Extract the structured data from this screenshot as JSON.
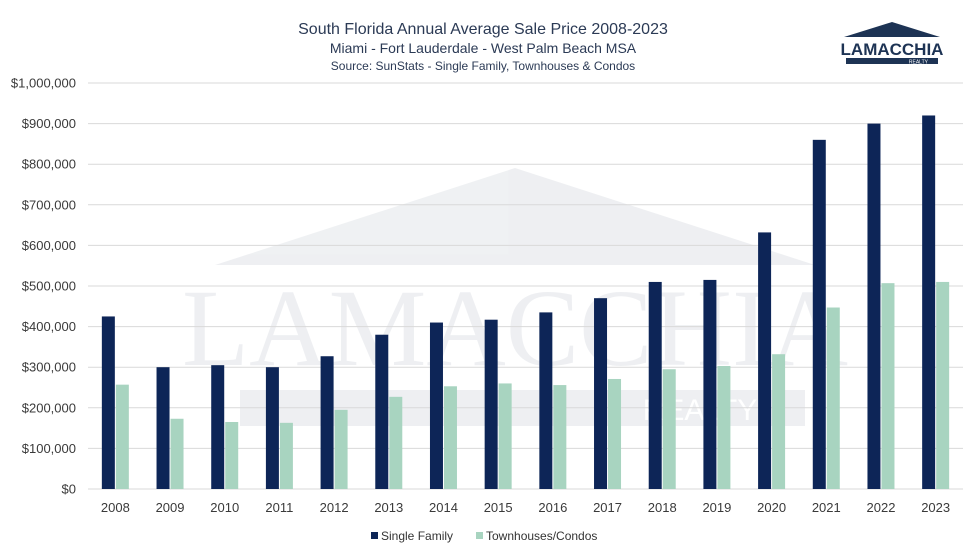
{
  "chart_data": {
    "type": "bar",
    "title": "South Florida Annual Average Sale Price 2008-2023",
    "subtitle": "Miami - Fort Lauderdale - West Palm Beach MSA",
    "source": "Source: SunStats - Single Family, Townhouses & Condos",
    "xlabel": "",
    "ylabel": "",
    "ylim": [
      0,
      1000000
    ],
    "grid": true,
    "legend_position": "bottom",
    "y_ticks": [
      {
        "value": 0,
        "label": "$0"
      },
      {
        "value": 100000,
        "label": "$100,000"
      },
      {
        "value": 200000,
        "label": "$200,000"
      },
      {
        "value": 300000,
        "label": "$300,000"
      },
      {
        "value": 400000,
        "label": "$400,000"
      },
      {
        "value": 500000,
        "label": "$500,000"
      },
      {
        "value": 600000,
        "label": "$600,000"
      },
      {
        "value": 700000,
        "label": "$700,000"
      },
      {
        "value": 800000,
        "label": "$800,000"
      },
      {
        "value": 900000,
        "label": "$900,000"
      },
      {
        "value": 1000000,
        "label": "$1,000,000"
      }
    ],
    "categories": [
      "2008",
      "2009",
      "2010",
      "2011",
      "2012",
      "2013",
      "2014",
      "2015",
      "2016",
      "2017",
      "2018",
      "2019",
      "2020",
      "2021",
      "2022",
      "2023"
    ],
    "series": [
      {
        "name": "Single Family",
        "color": "#0d2557",
        "values": [
          425000,
          300000,
          305000,
          300000,
          327000,
          380000,
          410000,
          417000,
          435000,
          470000,
          510000,
          515000,
          632000,
          860000,
          900000,
          920000
        ]
      },
      {
        "name": "Townhouses/Condos",
        "color": "#a8d4c0",
        "values": [
          257000,
          173000,
          165000,
          163000,
          195000,
          227000,
          253000,
          260000,
          256000,
          271000,
          295000,
          303000,
          332000,
          447000,
          507000,
          510000
        ]
      }
    ]
  },
  "logo": {
    "text": "LAMACCHIA",
    "subtext": "REALTY",
    "color": "#1d3354"
  },
  "watermark": {
    "text": "LAMACCHIA",
    "subtext": "REALTY"
  }
}
